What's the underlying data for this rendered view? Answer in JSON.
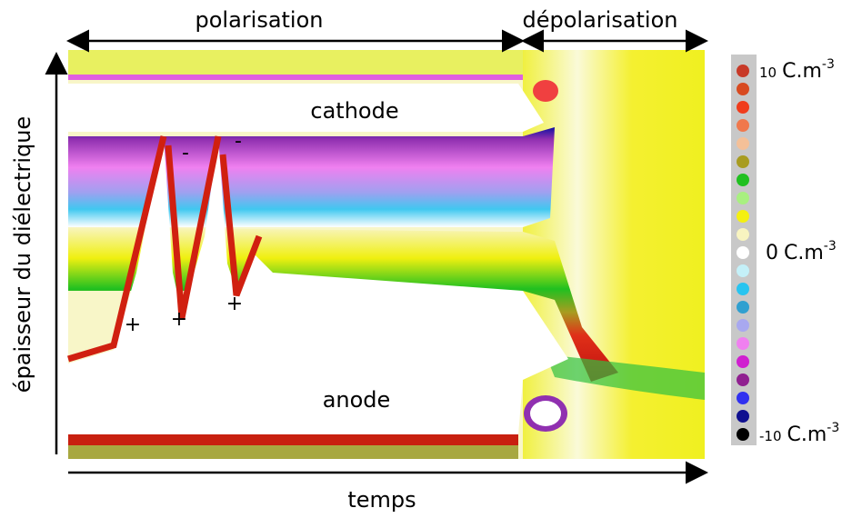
{
  "labels": {
    "polarisation": "polarisation",
    "depolarisation": "dépolarisation",
    "x_axis": "temps",
    "y_axis": "épaisseur du diélectrique",
    "cathode": "cathode",
    "anode": "anode"
  },
  "signs": [
    {
      "text": "-"
    },
    {
      "text": "-"
    },
    {
      "text": "+"
    },
    {
      "text": "+"
    },
    {
      "text": "+"
    }
  ],
  "colorbar": {
    "colors": [
      "#c83a28",
      "#d84a20",
      "#f03c1c",
      "#f0784c",
      "#f4c098",
      "#a89c20",
      "#20c020",
      "#a8f080",
      "#f4f010",
      "#f8f4c0",
      "#ffffff",
      "#c4f0f8",
      "#28c4f0",
      "#30a0d0",
      "#a8a8f0",
      "#f080f0",
      "#d020d0",
      "#902090",
      "#3030f0",
      "#101090",
      "#000000"
    ],
    "ticks": [
      {
        "value": 10,
        "unit": "C.m",
        "exp": "-3"
      },
      {
        "value": 0,
        "unit": "C.m",
        "exp": "-3"
      },
      {
        "value": -10,
        "unit": "C.m",
        "exp": "-3"
      }
    ]
  }
}
